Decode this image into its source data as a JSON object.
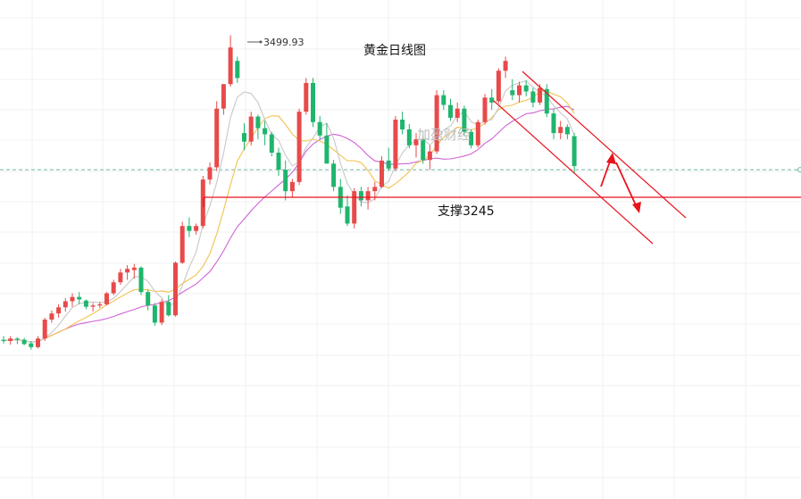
{
  "chart_data": {
    "type": "candlestick",
    "title": "黄金日线图",
    "watermark": "加盈财经",
    "high_label": "3499.93",
    "support_label": "支撑3245",
    "support_level": 3245,
    "current_price": 3290,
    "y_range": [
      2930,
      3550
    ],
    "colors": {
      "up": "#e84a4a",
      "down": "#1fb56d",
      "ma_fast": "#c8c8c8",
      "ma_mid": "#f2c14e",
      "ma_slow": "#cf63d6",
      "annotation": "#e8131c",
      "price_line": "#6fb8a8"
    },
    "candles": [
      [
        3012,
        3018,
        3006,
        3010
      ],
      [
        3010,
        3018,
        3004,
        3014
      ],
      [
        3014,
        3016,
        3005,
        3012
      ],
      [
        3012,
        3015,
        3003,
        3005
      ],
      [
        3006,
        3010,
        2996,
        3000
      ],
      [
        3000,
        3018,
        2998,
        3014
      ],
      [
        3014,
        3048,
        3010,
        3045
      ],
      [
        3045,
        3060,
        3040,
        3055
      ],
      [
        3055,
        3070,
        3048,
        3065
      ],
      [
        3065,
        3080,
        3058,
        3075
      ],
      [
        3075,
        3088,
        3066,
        3082
      ],
      [
        3082,
        3090,
        3070,
        3078
      ],
      [
        3076,
        3078,
        3062,
        3066
      ],
      [
        3066,
        3072,
        3058,
        3068
      ],
      [
        3068,
        3074,
        3064,
        3070
      ],
      [
        3070,
        3090,
        3068,
        3088
      ],
      [
        3088,
        3110,
        3085,
        3106
      ],
      [
        3106,
        3128,
        3102,
        3122
      ],
      [
        3122,
        3134,
        3110,
        3128
      ],
      [
        3126,
        3136,
        3112,
        3130
      ],
      [
        3130,
        3132,
        3085,
        3090
      ],
      [
        3090,
        3094,
        3060,
        3068
      ],
      [
        3068,
        3072,
        3035,
        3040
      ],
      [
        3040,
        3078,
        3036,
        3074
      ],
      [
        3074,
        3085,
        3050,
        3052
      ],
      [
        3052,
        3140,
        3050,
        3138
      ],
      [
        3138,
        3205,
        3136,
        3198
      ],
      [
        3198,
        3212,
        3180,
        3190
      ],
      [
        3190,
        3202,
        3184,
        3198
      ],
      [
        3198,
        3280,
        3194,
        3274
      ],
      [
        3274,
        3302,
        3266,
        3294
      ],
      [
        3294,
        3402,
        3288,
        3390
      ],
      [
        3390,
        3430,
        3380,
        3430
      ],
      [
        3430,
        3510,
        3426,
        3490
      ],
      [
        3468,
        3475,
        3432,
        3440
      ],
      [
        3350,
        3366,
        3322,
        3336
      ],
      [
        3336,
        3385,
        3330,
        3377
      ],
      [
        3377,
        3380,
        3340,
        3358
      ],
      [
        3358,
        3370,
        3330,
        3348
      ],
      [
        3348,
        3352,
        3312,
        3318
      ],
      [
        3318,
        3326,
        3280,
        3290
      ],
      [
        3290,
        3305,
        3240,
        3255
      ],
      [
        3255,
        3275,
        3245,
        3270
      ],
      [
        3270,
        3390,
        3265,
        3385
      ],
      [
        3385,
        3440,
        3380,
        3432
      ],
      [
        3432,
        3440,
        3360,
        3368
      ],
      [
        3368,
        3378,
        3340,
        3346
      ],
      [
        3346,
        3366,
        3305,
        3300
      ],
      [
        3300,
        3306,
        3255,
        3262
      ],
      [
        3262,
        3275,
        3218,
        3228
      ],
      [
        3230,
        3248,
        3198,
        3202
      ],
      [
        3202,
        3260,
        3194,
        3255
      ],
      [
        3255,
        3262,
        3230,
        3240
      ],
      [
        3240,
        3262,
        3225,
        3255
      ],
      [
        3255,
        3270,
        3240,
        3262
      ],
      [
        3262,
        3312,
        3260,
        3305
      ],
      [
        3305,
        3326,
        3288,
        3292
      ],
      [
        3292,
        3378,
        3288,
        3372
      ],
      [
        3372,
        3385,
        3348,
        3356
      ],
      [
        3356,
        3365,
        3325,
        3330
      ],
      [
        3330,
        3350,
        3310,
        3340
      ],
      [
        3340,
        3346,
        3300,
        3306
      ],
      [
        3306,
        3330,
        3290,
        3320
      ],
      [
        3320,
        3420,
        3316,
        3412
      ],
      [
        3412,
        3420,
        3388,
        3396
      ],
      [
        3396,
        3406,
        3370,
        3375
      ],
      [
        3375,
        3400,
        3368,
        3390
      ],
      [
        3390,
        3395,
        3345,
        3352
      ],
      [
        3352,
        3356,
        3325,
        3330
      ],
      [
        3330,
        3372,
        3326,
        3368
      ],
      [
        3368,
        3414,
        3364,
        3408
      ],
      [
        3408,
        3422,
        3388,
        3400
      ],
      [
        3402,
        3456,
        3398,
        3452
      ],
      [
        3452,
        3475,
        3440,
        3468
      ],
      [
        3420,
        3438,
        3404,
        3412
      ],
      [
        3412,
        3434,
        3400,
        3428
      ],
      [
        3428,
        3436,
        3410,
        3418
      ],
      [
        3418,
        3424,
        3392,
        3400
      ],
      [
        3400,
        3430,
        3396,
        3424
      ],
      [
        3422,
        3430,
        3376,
        3382
      ],
      [
        3382,
        3390,
        3340,
        3350
      ],
      [
        3350,
        3370,
        3340,
        3360
      ],
      [
        3360,
        3364,
        3340,
        3348
      ],
      [
        3345,
        3350,
        3284,
        3296
      ]
    ]
  }
}
